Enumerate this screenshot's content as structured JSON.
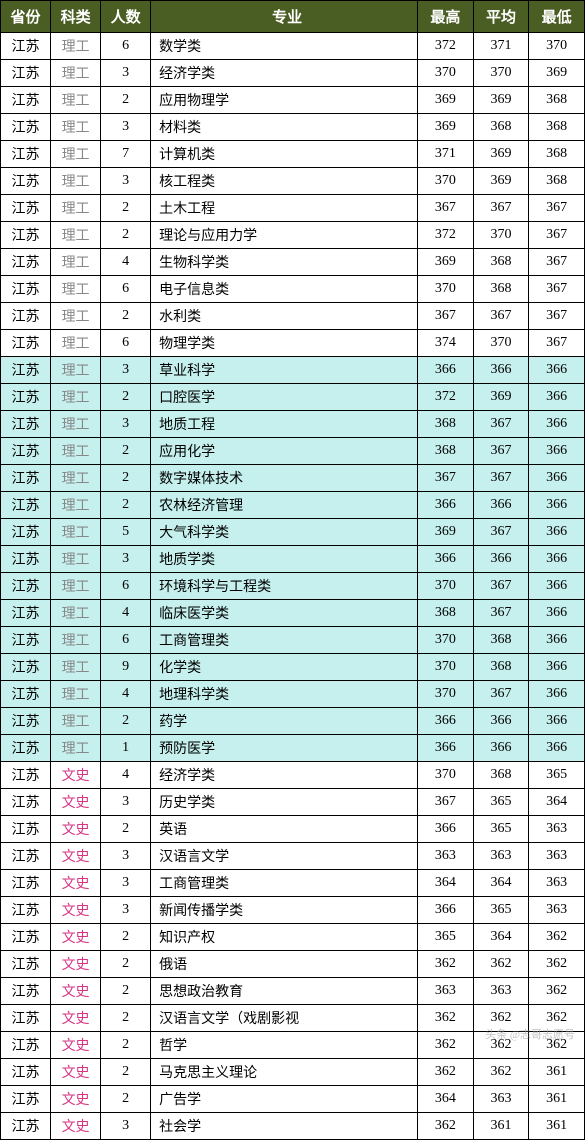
{
  "columns": [
    "省份",
    "科类",
    "人数",
    "专业",
    "最高",
    "平均",
    "最低"
  ],
  "colors": {
    "header_bg": "#4a5d23",
    "header_text": "#ffffff",
    "highlight_bg": "#c5f0ed",
    "sci_color": "#888888",
    "lit_color": "#d63384",
    "border": "#000000"
  },
  "rows": [
    {
      "prov": "江苏",
      "cat": "理工",
      "num": 6,
      "major": "数学类",
      "hi": 372,
      "avg": 371,
      "lo": 370,
      "hl": false
    },
    {
      "prov": "江苏",
      "cat": "理工",
      "num": 3,
      "major": "经济学类",
      "hi": 370,
      "avg": 370,
      "lo": 369,
      "hl": false
    },
    {
      "prov": "江苏",
      "cat": "理工",
      "num": 2,
      "major": "应用物理学",
      "hi": 369,
      "avg": 369,
      "lo": 368,
      "hl": false
    },
    {
      "prov": "江苏",
      "cat": "理工",
      "num": 3,
      "major": "材料类",
      "hi": 369,
      "avg": 368,
      "lo": 368,
      "hl": false
    },
    {
      "prov": "江苏",
      "cat": "理工",
      "num": 7,
      "major": "计算机类",
      "hi": 371,
      "avg": 369,
      "lo": 368,
      "hl": false
    },
    {
      "prov": "江苏",
      "cat": "理工",
      "num": 3,
      "major": "核工程类",
      "hi": 370,
      "avg": 369,
      "lo": 368,
      "hl": false
    },
    {
      "prov": "江苏",
      "cat": "理工",
      "num": 2,
      "major": "土木工程",
      "hi": 367,
      "avg": 367,
      "lo": 367,
      "hl": false
    },
    {
      "prov": "江苏",
      "cat": "理工",
      "num": 2,
      "major": "理论与应用力学",
      "hi": 372,
      "avg": 370,
      "lo": 367,
      "hl": false
    },
    {
      "prov": "江苏",
      "cat": "理工",
      "num": 4,
      "major": "生物科学类",
      "hi": 369,
      "avg": 368,
      "lo": 367,
      "hl": false
    },
    {
      "prov": "江苏",
      "cat": "理工",
      "num": 6,
      "major": "电子信息类",
      "hi": 370,
      "avg": 368,
      "lo": 367,
      "hl": false
    },
    {
      "prov": "江苏",
      "cat": "理工",
      "num": 2,
      "major": "水利类",
      "hi": 367,
      "avg": 367,
      "lo": 367,
      "hl": false
    },
    {
      "prov": "江苏",
      "cat": "理工",
      "num": 6,
      "major": "物理学类",
      "hi": 374,
      "avg": 370,
      "lo": 367,
      "hl": false
    },
    {
      "prov": "江苏",
      "cat": "理工",
      "num": 3,
      "major": "草业科学",
      "hi": 366,
      "avg": 366,
      "lo": 366,
      "hl": true
    },
    {
      "prov": "江苏",
      "cat": "理工",
      "num": 2,
      "major": "口腔医学",
      "hi": 372,
      "avg": 369,
      "lo": 366,
      "hl": true
    },
    {
      "prov": "江苏",
      "cat": "理工",
      "num": 3,
      "major": "地质工程",
      "hi": 368,
      "avg": 367,
      "lo": 366,
      "hl": true
    },
    {
      "prov": "江苏",
      "cat": "理工",
      "num": 2,
      "major": "应用化学",
      "hi": 368,
      "avg": 367,
      "lo": 366,
      "hl": true
    },
    {
      "prov": "江苏",
      "cat": "理工",
      "num": 2,
      "major": "数字媒体技术",
      "hi": 367,
      "avg": 367,
      "lo": 366,
      "hl": true
    },
    {
      "prov": "江苏",
      "cat": "理工",
      "num": 2,
      "major": "农林经济管理",
      "hi": 366,
      "avg": 366,
      "lo": 366,
      "hl": true
    },
    {
      "prov": "江苏",
      "cat": "理工",
      "num": 5,
      "major": "大气科学类",
      "hi": 369,
      "avg": 367,
      "lo": 366,
      "hl": true
    },
    {
      "prov": "江苏",
      "cat": "理工",
      "num": 3,
      "major": "地质学类",
      "hi": 366,
      "avg": 366,
      "lo": 366,
      "hl": true
    },
    {
      "prov": "江苏",
      "cat": "理工",
      "num": 6,
      "major": "环境科学与工程类",
      "hi": 370,
      "avg": 367,
      "lo": 366,
      "hl": true
    },
    {
      "prov": "江苏",
      "cat": "理工",
      "num": 4,
      "major": "临床医学类",
      "hi": 368,
      "avg": 367,
      "lo": 366,
      "hl": true
    },
    {
      "prov": "江苏",
      "cat": "理工",
      "num": 6,
      "major": "工商管理类",
      "hi": 370,
      "avg": 368,
      "lo": 366,
      "hl": true
    },
    {
      "prov": "江苏",
      "cat": "理工",
      "num": 9,
      "major": "化学类",
      "hi": 370,
      "avg": 368,
      "lo": 366,
      "hl": true
    },
    {
      "prov": "江苏",
      "cat": "理工",
      "num": 4,
      "major": "地理科学类",
      "hi": 370,
      "avg": 367,
      "lo": 366,
      "hl": true
    },
    {
      "prov": "江苏",
      "cat": "理工",
      "num": 2,
      "major": "药学",
      "hi": 366,
      "avg": 366,
      "lo": 366,
      "hl": true
    },
    {
      "prov": "江苏",
      "cat": "理工",
      "num": 1,
      "major": "预防医学",
      "hi": 366,
      "avg": 366,
      "lo": 366,
      "hl": true
    },
    {
      "prov": "江苏",
      "cat": "文史",
      "num": 4,
      "major": "经济学类",
      "hi": 370,
      "avg": 368,
      "lo": 365,
      "hl": false
    },
    {
      "prov": "江苏",
      "cat": "文史",
      "num": 3,
      "major": "历史学类",
      "hi": 367,
      "avg": 365,
      "lo": 364,
      "hl": false
    },
    {
      "prov": "江苏",
      "cat": "文史",
      "num": 2,
      "major": "英语",
      "hi": 366,
      "avg": 365,
      "lo": 363,
      "hl": false
    },
    {
      "prov": "江苏",
      "cat": "文史",
      "num": 3,
      "major": "汉语言文学",
      "hi": 363,
      "avg": 363,
      "lo": 363,
      "hl": false
    },
    {
      "prov": "江苏",
      "cat": "文史",
      "num": 3,
      "major": "工商管理类",
      "hi": 364,
      "avg": 364,
      "lo": 363,
      "hl": false
    },
    {
      "prov": "江苏",
      "cat": "文史",
      "num": 3,
      "major": "新闻传播学类",
      "hi": 366,
      "avg": 365,
      "lo": 363,
      "hl": false
    },
    {
      "prov": "江苏",
      "cat": "文史",
      "num": 2,
      "major": "知识产权",
      "hi": 365,
      "avg": 364,
      "lo": 362,
      "hl": false
    },
    {
      "prov": "江苏",
      "cat": "文史",
      "num": 2,
      "major": "俄语",
      "hi": 362,
      "avg": 362,
      "lo": 362,
      "hl": false
    },
    {
      "prov": "江苏",
      "cat": "文史",
      "num": 2,
      "major": "思想政治教育",
      "hi": 363,
      "avg": 363,
      "lo": 362,
      "hl": false
    },
    {
      "prov": "江苏",
      "cat": "文史",
      "num": 2,
      "major": "汉语言文学（戏剧影视",
      "hi": 362,
      "avg": 362,
      "lo": 362,
      "hl": false
    },
    {
      "prov": "江苏",
      "cat": "文史",
      "num": 2,
      "major": "哲学",
      "hi": 362,
      "avg": 362,
      "lo": 362,
      "hl": false
    },
    {
      "prov": "江苏",
      "cat": "文史",
      "num": 2,
      "major": "马克思主义理论",
      "hi": 362,
      "avg": 362,
      "lo": 361,
      "hl": false
    },
    {
      "prov": "江苏",
      "cat": "文史",
      "num": 2,
      "major": "广告学",
      "hi": 364,
      "avg": 363,
      "lo": 361,
      "hl": false
    },
    {
      "prov": "江苏",
      "cat": "文史",
      "num": 3,
      "major": "社会学",
      "hi": 362,
      "avg": 361,
      "lo": 361,
      "hl": false
    }
  ],
  "watermark": "头条 @志哥志愿号"
}
